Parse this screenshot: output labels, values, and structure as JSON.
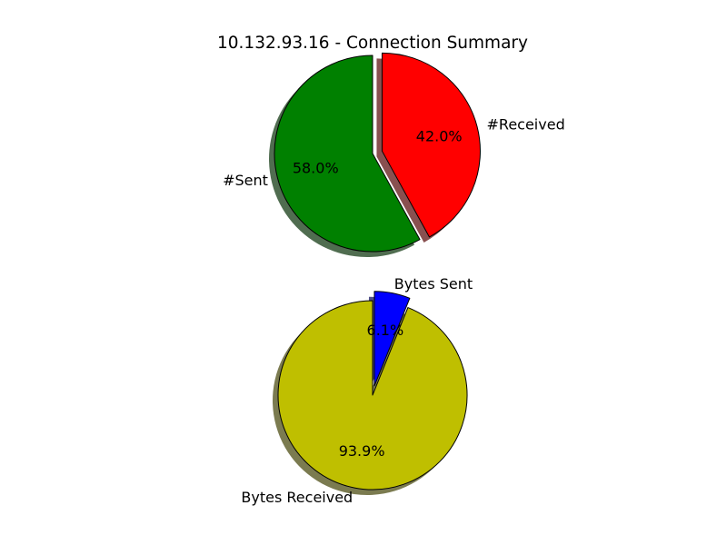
{
  "figure": {
    "title": "10.132.93.16 - Connection Summary"
  },
  "chart_data": [
    {
      "type": "pie",
      "title": "",
      "start_angle_deg": 90,
      "direction": "counterclockwise",
      "shadow": true,
      "edge_color": "#000000",
      "slices": [
        {
          "label": "#Sent",
          "value": 58.0,
          "pct_label": "58.0%",
          "color": "#008000",
          "explode": 0.0
        },
        {
          "label": "#Received",
          "value": 42.0,
          "pct_label": "42.0%",
          "color": "#ff0000",
          "explode": 0.1
        }
      ]
    },
    {
      "type": "pie",
      "title": "",
      "start_angle_deg": 90,
      "direction": "counterclockwise",
      "shadow": true,
      "edge_color": "#000000",
      "slices": [
        {
          "label": "Bytes Received",
          "value": 93.9,
          "pct_label": "93.9%",
          "color": "#bfbf00",
          "explode": 0.0
        },
        {
          "label": "Bytes Sent",
          "value": 6.1,
          "pct_label": "6.1%",
          "color": "#0000ff",
          "explode": 0.1
        }
      ]
    }
  ]
}
